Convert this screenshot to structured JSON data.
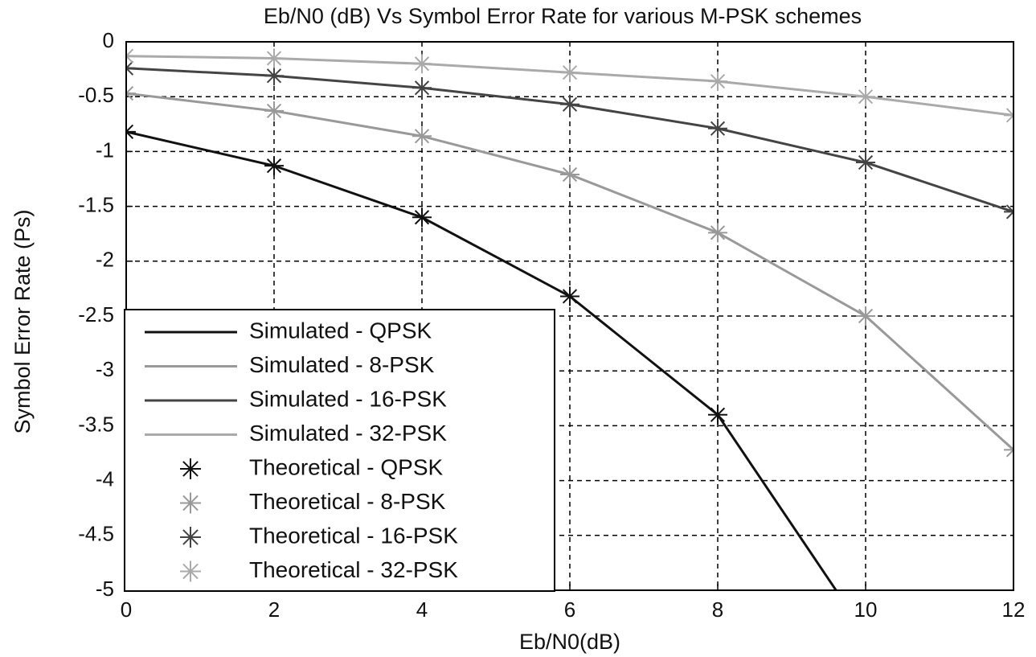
{
  "chart_data": {
    "type": "line",
    "title": "Eb/N0 (dB) Vs Symbol Error Rate for various M-PSK schemes",
    "xlabel": "Eb/N0(dB)",
    "ylabel": "Symbol Error Rate (Ps)",
    "x": [
      0,
      2,
      4,
      6,
      8,
      10,
      12
    ],
    "xlim": [
      0,
      12
    ],
    "xticks": [
      0,
      2,
      4,
      6,
      8,
      10,
      12
    ],
    "ylim": [
      -5,
      0
    ],
    "yticks": [
      0,
      -0.5,
      -1,
      -1.5,
      -2,
      -2.5,
      -3,
      -3.5,
      -4,
      -4.5,
      -5
    ],
    "grid": true,
    "legend": "lower left",
    "series": [
      {
        "name": "Simulated - QPSK",
        "style": "line",
        "color": "#111111",
        "values": [
          -0.82,
          -1.13,
          -1.6,
          -2.32,
          -3.4,
          -5.4,
          null
        ]
      },
      {
        "name": "Simulated - 8-PSK",
        "style": "line",
        "color": "#999999",
        "values": [
          -0.47,
          -0.63,
          -0.86,
          -1.21,
          -1.74,
          -2.5,
          -3.72
        ]
      },
      {
        "name": "Simulated - 16-PSK",
        "style": "line",
        "color": "#444444",
        "values": [
          -0.24,
          -0.31,
          -0.42,
          -0.57,
          -0.79,
          -1.1,
          -1.55
        ]
      },
      {
        "name": "Simulated - 32-PSK",
        "style": "line",
        "color": "#aaaaaa",
        "values": [
          -0.13,
          -0.15,
          -0.2,
          -0.28,
          -0.36,
          -0.5,
          -0.67
        ]
      },
      {
        "name": "Theoretical - QPSK",
        "style": "marker",
        "color": "#111111",
        "values": [
          -0.82,
          -1.13,
          -1.6,
          -2.32,
          -3.4,
          null,
          null
        ]
      },
      {
        "name": "Theoretical - 8-PSK",
        "style": "marker",
        "color": "#999999",
        "values": [
          -0.47,
          -0.63,
          -0.86,
          -1.21,
          -1.74,
          -2.5,
          -3.72
        ]
      },
      {
        "name": "Theoretical - 16-PSK",
        "style": "marker",
        "color": "#444444",
        "values": [
          -0.24,
          -0.31,
          -0.42,
          -0.57,
          -0.79,
          -1.1,
          -1.55
        ]
      },
      {
        "name": "Theoretical - 32-PSK",
        "style": "marker",
        "color": "#aaaaaa",
        "values": [
          -0.13,
          -0.15,
          -0.2,
          -0.28,
          -0.36,
          -0.5,
          -0.67
        ]
      }
    ]
  }
}
